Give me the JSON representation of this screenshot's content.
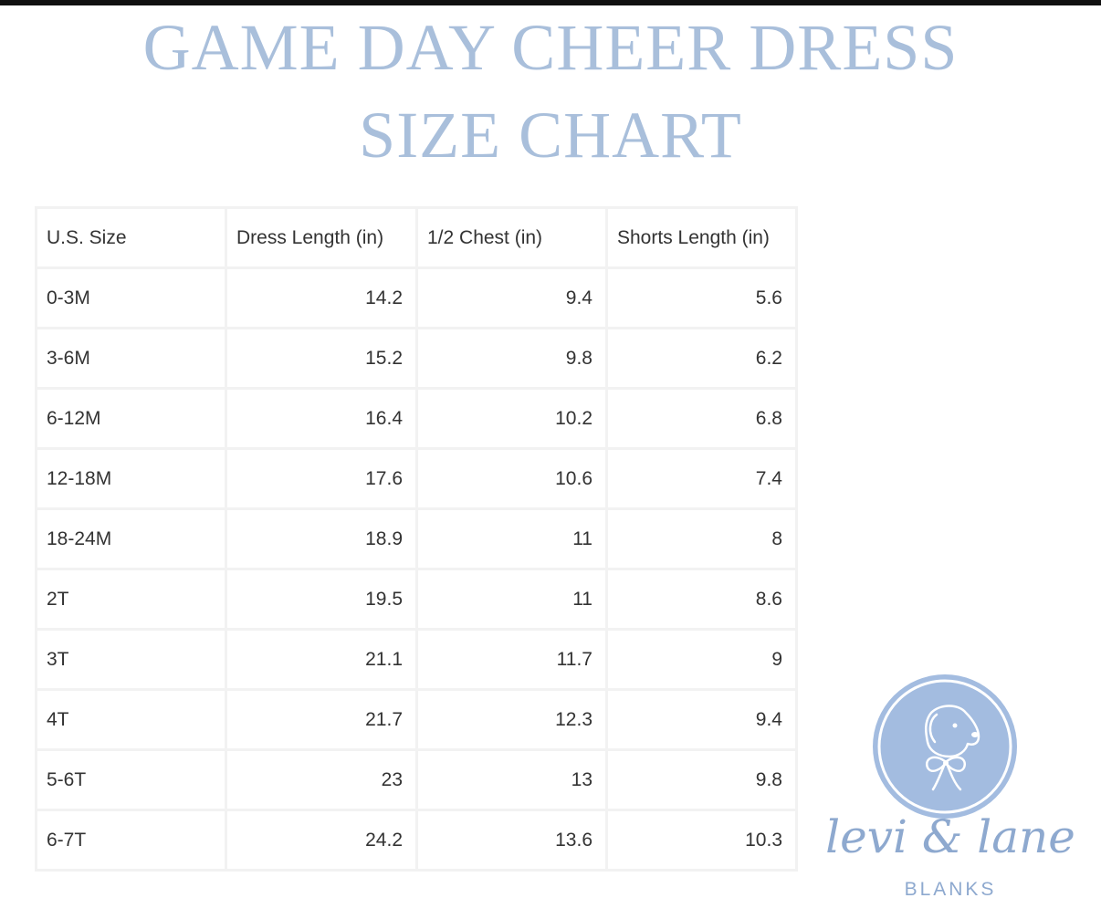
{
  "header": {
    "title_line1": "GAME DAY CHEER DRESS",
    "title_line2": "SIZE CHART"
  },
  "table": {
    "columns": [
      "U.S. Size",
      "Dress Length (in)",
      "1/2 Chest (in)",
      "Shorts Length (in)"
    ],
    "rows": [
      [
        "0-3M",
        "14.2",
        "9.4",
        "5.6"
      ],
      [
        "3-6M",
        "15.2",
        "9.8",
        "6.2"
      ],
      [
        "6-12M",
        "16.4",
        "10.2",
        "6.8"
      ],
      [
        "12-18M",
        "17.6",
        "10.6",
        "7.4"
      ],
      [
        "18-24M",
        "18.9",
        "11",
        "8"
      ],
      [
        "2T",
        "19.5",
        "11",
        "8.6"
      ],
      [
        "3T",
        "21.1",
        "11.7",
        "9"
      ],
      [
        "4T",
        "21.7",
        "12.3",
        "9.4"
      ],
      [
        "5-6T",
        "23",
        "13",
        "9.8"
      ],
      [
        "6-7T",
        "24.2",
        "13.6",
        "10.3"
      ]
    ]
  },
  "brand": {
    "name": "levi & lane",
    "sub": "BLANKS",
    "logo_icon": "dog-with-bow-icon"
  },
  "colors": {
    "title": "#a9bfdb",
    "logo_fill": "#a3bce0",
    "brand_text": "#8ea9cf"
  }
}
